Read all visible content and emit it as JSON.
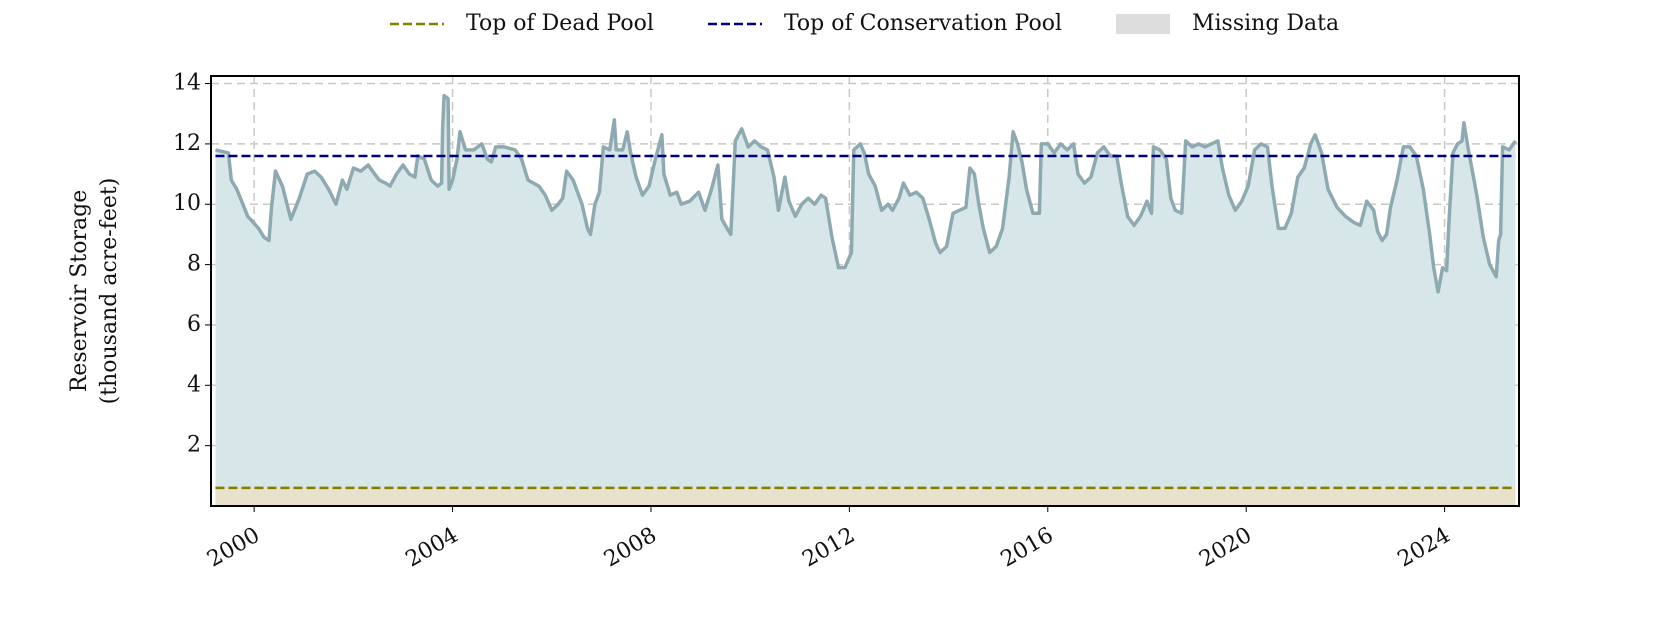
{
  "chart_data": {
    "type": "line",
    "ylabel": [
      "Reservoir Storage",
      "(thousand acre-feet)"
    ],
    "x": [
      1999.22,
      1999.48,
      1999.54,
      1999.65,
      1999.87,
      2000.09,
      2000.2,
      2000.3,
      2000.35,
      2000.43,
      2000.57,
      2000.74,
      2000.91,
      2001.07,
      2001.22,
      2001.35,
      2001.5,
      2001.65,
      2001.78,
      2001.87,
      2002.0,
      2002.15,
      2002.3,
      2002.43,
      2002.52,
      2002.65,
      2002.74,
      2002.87,
      2003.0,
      2003.13,
      2003.24,
      2003.3,
      2003.43,
      2003.57,
      2003.7,
      2003.78,
      2003.8,
      2003.83,
      2003.91,
      2003.93,
      2004.0,
      2004.09,
      2004.15,
      2004.26,
      2004.43,
      2004.59,
      2004.7,
      2004.78,
      2004.87,
      2005.04,
      2005.26,
      2005.39,
      2005.52,
      2005.74,
      2005.87,
      2006.0,
      2006.13,
      2006.22,
      2006.3,
      2006.43,
      2006.61,
      2006.72,
      2006.78,
      2006.87,
      2006.96,
      2007.04,
      2007.17,
      2007.26,
      2007.3,
      2007.43,
      2007.52,
      2007.59,
      2007.7,
      2007.83,
      2007.96,
      2008.09,
      2008.22,
      2008.26,
      2008.39,
      2008.52,
      2008.61,
      2008.78,
      2008.96,
      2009.09,
      2009.22,
      2009.35,
      2009.43,
      2009.57,
      2009.61,
      2009.7,
      2009.83,
      2009.96,
      2010.09,
      2010.22,
      2010.35,
      2010.48,
      2010.57,
      2010.7,
      2010.78,
      2010.91,
      2011.04,
      2011.17,
      2011.3,
      2011.43,
      2011.52,
      2011.65,
      2011.78,
      2011.91,
      2012.04,
      2012.09,
      2012.22,
      2012.3,
      2012.39,
      2012.52,
      2012.65,
      2012.78,
      2012.87,
      2013.0,
      2013.09,
      2013.22,
      2013.35,
      2013.48,
      2013.61,
      2013.74,
      2013.83,
      2013.96,
      2014.09,
      2014.22,
      2014.35,
      2014.43,
      2014.52,
      2014.61,
      2014.7,
      2014.83,
      2014.96,
      2015.09,
      2015.22,
      2015.3,
      2015.39,
      2015.48,
      2015.57,
      2015.7,
      2015.83,
      2015.87,
      2016.0,
      2016.13,
      2016.26,
      2016.39,
      2016.52,
      2016.61,
      2016.74,
      2016.87,
      2017.0,
      2017.13,
      2017.26,
      2017.39,
      2017.48,
      2017.61,
      2017.74,
      2017.87,
      2018.0,
      2018.09,
      2018.13,
      2018.26,
      2018.39,
      2018.48,
      2018.57,
      2018.7,
      2018.78,
      2018.91,
      2019.04,
      2019.17,
      2019.3,
      2019.43,
      2019.52,
      2019.65,
      2019.78,
      2019.91,
      2020.04,
      2020.17,
      2020.3,
      2020.43,
      2020.52,
      2020.65,
      2020.78,
      2020.91,
      2021.04,
      2021.17,
      2021.3,
      2021.39,
      2021.52,
      2021.65,
      2021.83,
      2022.0,
      2022.17,
      2022.3,
      2022.43,
      2022.57,
      2022.65,
      2022.74,
      2022.83,
      2022.91,
      2023.04,
      2023.17,
      2023.3,
      2023.43,
      2023.57,
      2023.7,
      2023.78,
      2023.87,
      2023.96,
      2024.04,
      2024.09,
      2024.17,
      2024.26,
      2024.35,
      2024.39,
      2024.48,
      2024.57,
      2024.65,
      2024.78,
      2024.91,
      2025.04,
      2025.09,
      2025.13,
      2025.17,
      2025.3,
      2025.43
    ],
    "series": [
      {
        "color": "#8eaab0",
        "fill_color": "#d7e6e8",
        "values": [
          11.8,
          11.7,
          10.8,
          10.5,
          9.6,
          9.2,
          8.9,
          8.8,
          9.9,
          11.1,
          10.6,
          9.5,
          10.2,
          11.0,
          11.1,
          10.9,
          10.5,
          10.0,
          10.8,
          10.5,
          11.2,
          11.1,
          11.3,
          11.0,
          10.8,
          10.7,
          10.6,
          11.0,
          11.3,
          11.0,
          10.9,
          11.6,
          11.5,
          10.8,
          10.6,
          10.7,
          12.5,
          13.6,
          13.5,
          10.5,
          10.8,
          11.5,
          12.4,
          11.8,
          11.8,
          12.0,
          11.5,
          11.4,
          11.9,
          11.9,
          11.8,
          11.5,
          10.8,
          10.6,
          10.3,
          9.8,
          10.0,
          10.2,
          11.1,
          10.8,
          10.0,
          9.2,
          9.0,
          10.0,
          10.4,
          11.9,
          11.8,
          12.8,
          11.8,
          11.8,
          12.4,
          11.7,
          10.9,
          10.3,
          10.6,
          11.5,
          12.3,
          11.0,
          10.3,
          10.4,
          10.0,
          10.1,
          10.4,
          9.8,
          10.5,
          11.3,
          9.5,
          9.1,
          9.0,
          12.1,
          12.5,
          11.9,
          12.1,
          11.9,
          11.8,
          10.9,
          9.8,
          10.9,
          10.1,
          9.6,
          10.0,
          10.2,
          10.0,
          10.3,
          10.2,
          8.9,
          7.9,
          7.9,
          8.4,
          11.8,
          12.0,
          11.7,
          11.0,
          10.6,
          9.8,
          10.0,
          9.8,
          10.2,
          10.7,
          10.3,
          10.4,
          10.2,
          9.5,
          8.7,
          8.4,
          8.6,
          9.7,
          9.8,
          9.9,
          11.2,
          11.0,
          10.0,
          9.2,
          8.4,
          8.6,
          9.2,
          10.9,
          12.4,
          12.0,
          11.4,
          10.5,
          9.7,
          9.7,
          12.0,
          12.0,
          11.7,
          12.0,
          11.8,
          12.0,
          11.0,
          10.7,
          10.9,
          11.7,
          11.9,
          11.6,
          11.6,
          10.7,
          9.6,
          9.3,
          9.6,
          10.1,
          9.7,
          11.9,
          11.8,
          11.5,
          10.2,
          9.8,
          9.7,
          12.1,
          11.9,
          12.0,
          11.9,
          12.0,
          12.1,
          11.2,
          10.3,
          9.8,
          10.1,
          10.6,
          11.8,
          12.0,
          11.9,
          10.6,
          9.2,
          9.2,
          9.7,
          10.9,
          11.2,
          12.0,
          12.3,
          11.7,
          10.5,
          9.9,
          9.6,
          9.4,
          9.3,
          10.1,
          9.8,
          9.1,
          8.8,
          9.0,
          9.9,
          10.8,
          11.9,
          11.9,
          11.6,
          10.5,
          9.0,
          7.9,
          7.1,
          7.9,
          7.8,
          9.5,
          11.7,
          12.0,
          12.1,
          12.7,
          11.8,
          11.0,
          10.3,
          8.9,
          8.0,
          7.6,
          8.8,
          9.0,
          11.9,
          11.8,
          12.1
        ]
      }
    ],
    "reference_lines": [
      {
        "name": "Top of Dead Pool",
        "color": "#808000",
        "fill_color": "#e8e2cc",
        "value": 0.6
      },
      {
        "name": "Top of Conservation Pool",
        "color": "#000080",
        "value": 11.6
      }
    ],
    "missing_data": {
      "name": "Missing Data",
      "color": "#dddddd"
    },
    "xlim": [
      1999.13,
      2025.5
    ],
    "xticks": [
      2000,
      2004,
      2008,
      2012,
      2016,
      2020,
      2024
    ],
    "ylim": [
      0,
      14.25
    ],
    "yticks": [
      2,
      4,
      6,
      8,
      10,
      12,
      14
    ],
    "grid": true
  }
}
